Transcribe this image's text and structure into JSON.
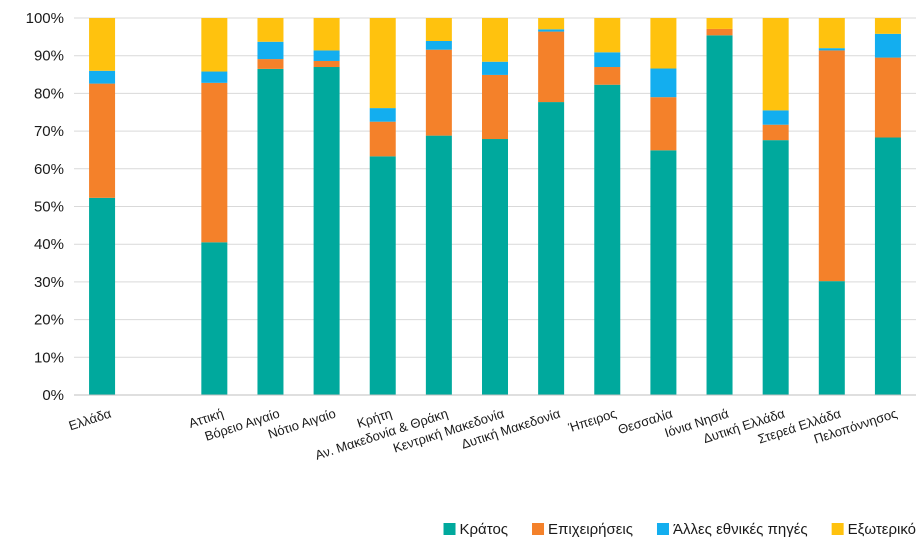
{
  "chart_data": {
    "type": "bar",
    "stacked": true,
    "percent": true,
    "categories": [
      "Ελλάδα",
      "",
      "Αττική",
      "Βόρειο Αιγαίο",
      "Νότιο Αιγαίο",
      "Κρήτη",
      "Αν. Μακεδονία & Θράκη",
      "Κεντρική Μακεδονία",
      "Δυτική Μακεδονία",
      "Ήπειρος",
      "Θεσσαλία",
      "Ιόνια Νησιά",
      "Δυτική Ελλάδα",
      "Στερεά Ελλάδα",
      "Πελοπόννησος"
    ],
    "series": [
      {
        "name": "Κράτος",
        "color": "#00A99D",
        "values": [
          52.3,
          null,
          40.5,
          86.5,
          87.0,
          63.3,
          68.8,
          67.9,
          77.7,
          82.3,
          64.9,
          95.4,
          67.6,
          30.2,
          68.3
        ]
      },
      {
        "name": "Επιχειρήσεις",
        "color": "#F4812A",
        "values": [
          30.3,
          null,
          42.3,
          2.6,
          1.6,
          9.2,
          22.8,
          17.0,
          18.7,
          4.7,
          14.1,
          1.7,
          4.1,
          61.2,
          21.2
        ]
      },
      {
        "name": "Άλλες εθνικές πηγές",
        "color": "#13AEEF",
        "values": [
          3.4,
          null,
          3.0,
          4.6,
          2.8,
          3.6,
          2.3,
          3.5,
          0.6,
          3.9,
          7.6,
          0.0,
          3.8,
          0.6,
          6.3
        ]
      },
      {
        "name": "Εξωτερικό",
        "color": "#FFC20E",
        "values": [
          14.0,
          null,
          14.2,
          6.3,
          8.6,
          23.9,
          6.1,
          11.6,
          3.0,
          9.1,
          13.4,
          2.9,
          24.5,
          8.0,
          4.2
        ]
      }
    ],
    "yticks": [
      "0%",
      "10%",
      "20%",
      "30%",
      "40%",
      "50%",
      "60%",
      "70%",
      "80%",
      "90%",
      "100%"
    ],
    "ylim": [
      0,
      100
    ],
    "grid": true,
    "legend_position": "bottom-right",
    "title": "",
    "xlabel": "",
    "ylabel": ""
  }
}
